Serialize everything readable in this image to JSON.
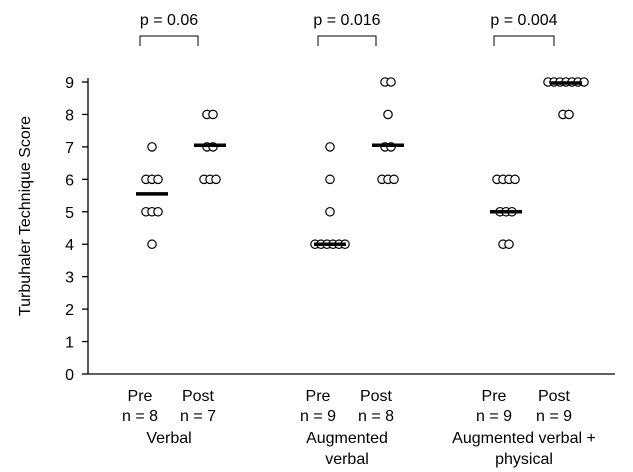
{
  "chart_data": {
    "type": "scatter",
    "ylabel": "Turbuhaler Technique Score",
    "ylim": [
      0,
      9
    ],
    "yticks": [
      "0",
      "1",
      "2",
      "3",
      "4",
      "5",
      "6",
      "7",
      "8",
      "9"
    ],
    "grid": false,
    "groups": [
      {
        "name": "Verbal",
        "name_lines": [
          "Verbal"
        ],
        "p_value": "p = 0.06",
        "conditions": [
          {
            "label": "Pre",
            "n_label": "n = 8",
            "median": 5.55,
            "points": [
              4,
              5,
              5,
              5,
              6,
              6,
              6,
              7
            ]
          },
          {
            "label": "Post",
            "n_label": "n = 7",
            "median": 7.05,
            "points": [
              6,
              6,
              6,
              7,
              7,
              8,
              8
            ]
          }
        ]
      },
      {
        "name": "Augmented verbal",
        "name_lines": [
          "Augmented",
          "verbal"
        ],
        "p_value": "p = 0.016",
        "conditions": [
          {
            "label": "Pre",
            "n_label": "n = 9",
            "median": 4.0,
            "points": [
              4,
              4,
              4,
              4,
              4,
              4,
              5,
              6,
              7
            ]
          },
          {
            "label": "Post",
            "n_label": "n = 8",
            "median": 7.05,
            "points": [
              6,
              6,
              6,
              7,
              7,
              8,
              9,
              9
            ]
          }
        ]
      },
      {
        "name": "Augmented verbal + physical",
        "name_lines": [
          "Augmented verbal +",
          "physical"
        ],
        "p_value": "p = 0.004",
        "conditions": [
          {
            "label": "Pre",
            "n_label": "n = 9",
            "median": 5.0,
            "points": [
              4,
              4,
              5,
              5,
              5,
              6,
              6,
              6,
              6
            ]
          },
          {
            "label": "Post",
            "n_label": "n = 9",
            "median": 8.97,
            "points": [
              8,
              8,
              9,
              9,
              9,
              9,
              9,
              9,
              9
            ]
          }
        ]
      }
    ]
  }
}
